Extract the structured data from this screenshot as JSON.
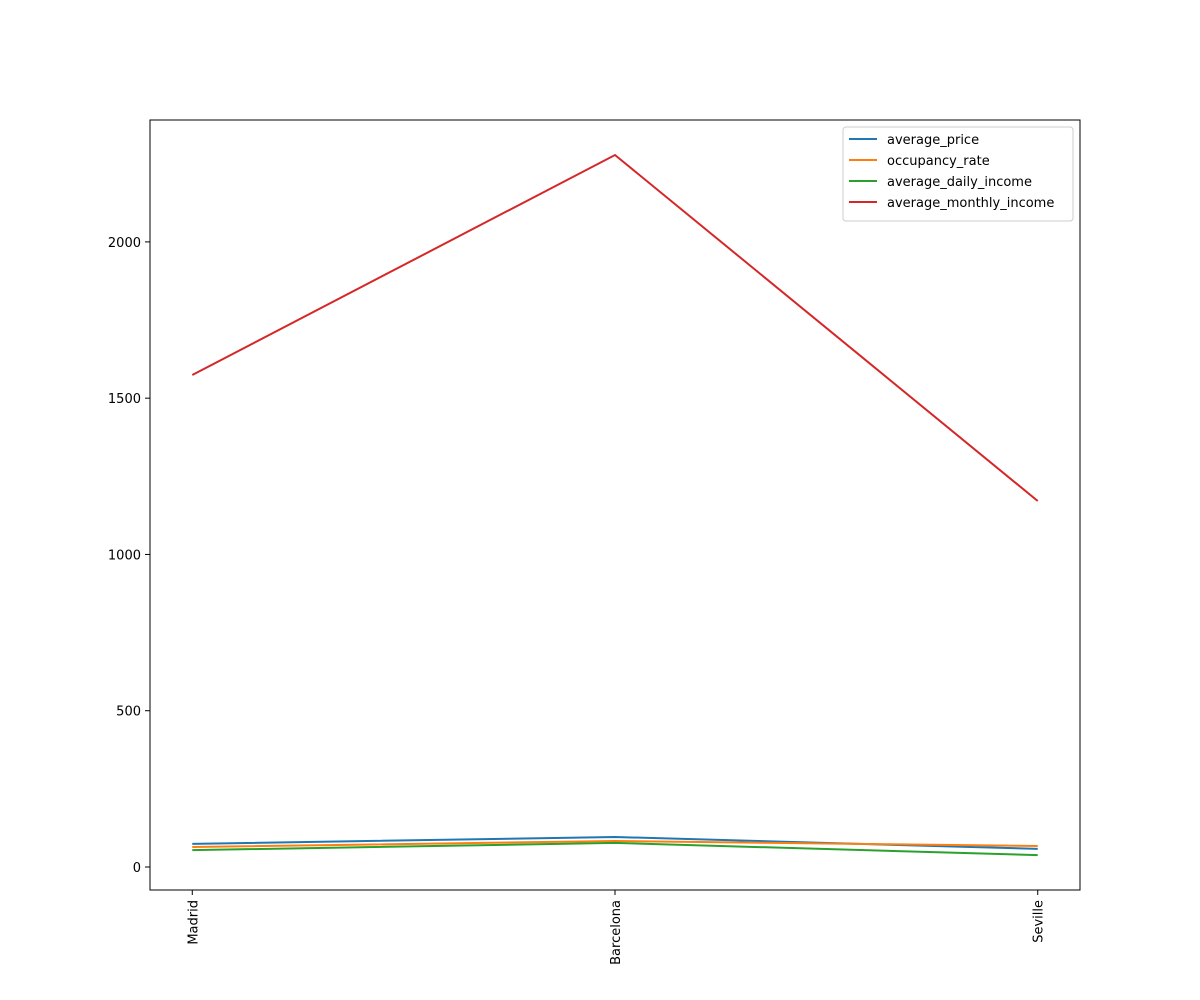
{
  "chart_data": {
    "type": "line",
    "categories": [
      "Madrid",
      "Barcelona",
      "Seville"
    ],
    "series": [
      {
        "name": "average_price",
        "color": "#1f77b4",
        "values": [
          74,
          96,
          58
        ]
      },
      {
        "name": "occupancy_rate",
        "color": "#ff7f0e",
        "values": [
          64,
          83,
          67
        ]
      },
      {
        "name": "average_daily_income",
        "color": "#2ca02c",
        "values": [
          54,
          77,
          38
        ]
      },
      {
        "name": "average_monthly_income",
        "color": "#d62728",
        "values": [
          1574,
          2278,
          1171
        ]
      }
    ],
    "ylim": [
      -73.6,
      2390
    ],
    "yticks": [
      0,
      500,
      1000,
      1500,
      2000
    ],
    "grid": false,
    "legend": "upper right"
  }
}
